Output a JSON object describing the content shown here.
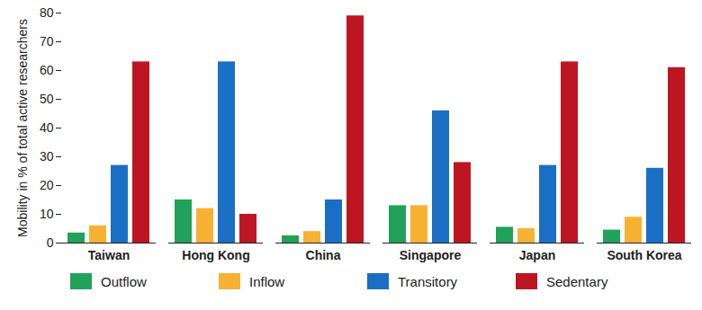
{
  "chart_data": {
    "type": "bar",
    "y_label": "Mobility in % of total active researchers",
    "categories": [
      "Taiwan",
      "Hong Kong",
      "China",
      "Singapore",
      "Japan",
      "South Korea"
    ],
    "series": [
      {
        "name": "Outflow",
        "color": "#22a15a",
        "values": [
          3.5,
          15,
          2.5,
          13,
          5.5,
          4.5
        ]
      },
      {
        "name": "Inflow",
        "color": "#f7b233",
        "values": [
          6,
          12,
          4,
          13,
          5,
          9
        ]
      },
      {
        "name": "Transitory",
        "color": "#1a6fc4",
        "values": [
          27,
          63,
          15,
          46,
          27,
          26
        ]
      },
      {
        "name": "Sedentary",
        "color": "#bd1622",
        "values": [
          63,
          10,
          79,
          28,
          63,
          61
        ]
      }
    ],
    "ylim": [
      0,
      80
    ],
    "yticks": [
      0,
      10,
      20,
      30,
      40,
      50,
      60,
      70,
      80
    ],
    "grid": false,
    "legend": "bottom-left"
  }
}
